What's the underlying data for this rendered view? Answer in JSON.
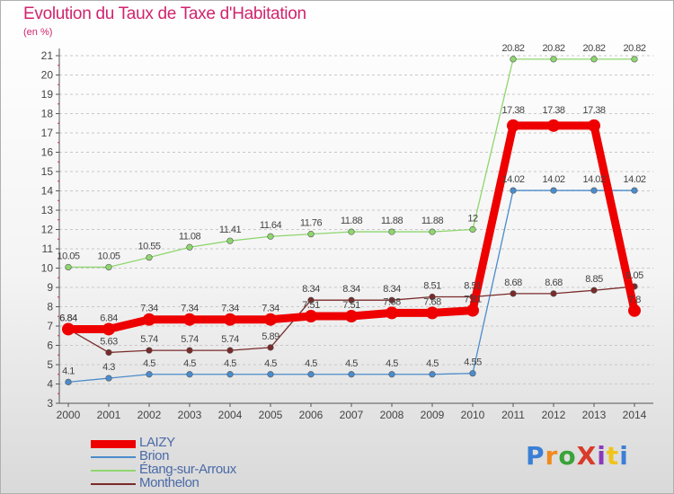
{
  "title": "Evolution du Taux de Taxe d'Habitation",
  "unit": "(en %)",
  "logo": {
    "text": "ProXiti",
    "letter_colors": [
      "#3a7fd5",
      "#f08a1c",
      "#3aa33a",
      "#d93a2b",
      "#8a3ab9",
      "#f0c419",
      "#3a7fd5"
    ]
  },
  "chart_data": {
    "type": "line",
    "title": "Evolution du Taux de Taxe d'Habitation",
    "ylabel": "(en %)",
    "xlabel": "",
    "x": [
      "2000",
      "2001",
      "2002",
      "2003",
      "2004",
      "2005",
      "2006",
      "2007",
      "2008",
      "2009",
      "2010",
      "2011",
      "2012",
      "2013",
      "2014"
    ],
    "ylim": [
      3,
      21
    ],
    "yticks": [
      3,
      4,
      5,
      6,
      7,
      8,
      9,
      10,
      11,
      12,
      13,
      14,
      15,
      16,
      17,
      18,
      19,
      20,
      21
    ],
    "grid": "horizontal dashed",
    "legend_position": "bottom-left",
    "series": [
      {
        "name": "LAIZY",
        "color": "#ee0000",
        "values": [
          6.84,
          6.84,
          7.34,
          7.34,
          7.34,
          7.34,
          7.51,
          7.51,
          7.68,
          7.68,
          7.81,
          17.38,
          17.38,
          17.38,
          7.8
        ],
        "labels": [
          "6.84",
          "6.84",
          "7.34",
          "7.34",
          "7.34",
          "7.34",
          "7.51",
          "7.51",
          "7.68",
          "7.68",
          "7.81",
          "17.38",
          "17.38",
          "17.38",
          "7.8"
        ]
      },
      {
        "name": "Brion",
        "color": "#4a8ccc",
        "values": [
          4.1,
          4.3,
          4.5,
          4.5,
          4.5,
          4.5,
          4.5,
          4.5,
          4.5,
          4.5,
          4.55,
          14.02,
          14.02,
          14.02,
          14.02
        ],
        "labels": [
          "4.1",
          "4.3",
          "4.5",
          "4.5",
          "4.5",
          "4.5",
          "4.5",
          "4.5",
          "4.5",
          "4.5",
          "4.55",
          "14.02",
          "14.02",
          "14.02",
          "14.02"
        ]
      },
      {
        "name": "Étang-sur-Arroux",
        "color": "#8ed66e",
        "values": [
          10.05,
          10.05,
          10.55,
          11.08,
          11.41,
          11.64,
          11.76,
          11.88,
          11.88,
          11.88,
          12,
          20.82,
          20.82,
          20.82,
          20.82
        ],
        "labels": [
          "10.05",
          "10.05",
          "10.55",
          "11.08",
          "11.41",
          "11.64",
          "11.76",
          "11.88",
          "11.88",
          "11.88",
          "12",
          "20.82",
          "20.82",
          "20.82",
          "20.82"
        ]
      },
      {
        "name": "Monthelon",
        "color": "#7a2a2a",
        "values": [
          6.84,
          5.63,
          5.74,
          5.74,
          5.74,
          5.89,
          8.34,
          8.34,
          8.34,
          8.51,
          8.51,
          8.68,
          8.68,
          8.85,
          9.05
        ],
        "labels": [
          "6.84",
          "5.63",
          "5.74",
          "5.74",
          "5.74",
          "5.89",
          "8.34",
          "8.34",
          "8.34",
          "8.51",
          "8.51",
          "8.68",
          "8.68",
          "8.85",
          "9.05"
        ]
      }
    ]
  }
}
